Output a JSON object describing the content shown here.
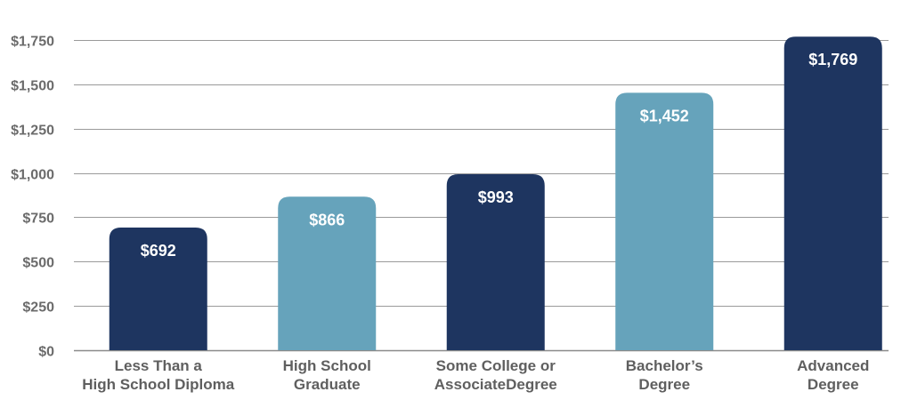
{
  "chart_data": {
    "type": "bar",
    "title": "",
    "xlabel": "",
    "ylabel": "",
    "ylim": [
      0,
      1750
    ],
    "y_ticks": [
      0,
      250,
      500,
      750,
      1000,
      1250,
      1500,
      1750
    ],
    "y_tick_labels": [
      "$0",
      "$250",
      "$500",
      "$750",
      "$1,000",
      "$1,250",
      "$1,500",
      "$1,750"
    ],
    "grid": true,
    "categories": [
      [
        "Less Than a",
        "High School Diploma"
      ],
      [
        "High School",
        "Graduate"
      ],
      [
        "Some College or",
        "AssociateDegree"
      ],
      [
        "Bachelor’s",
        "Degree"
      ],
      [
        "Advanced",
        "Degree"
      ]
    ],
    "values": [
      692,
      866,
      993,
      1452,
      1769
    ],
    "value_labels": [
      "$692",
      "$866",
      "$993",
      "$1,452",
      "$1,769"
    ],
    "bar_colors": [
      "#1e3560",
      "#66a3bb",
      "#1e3560",
      "#66a3bb",
      "#1e3560"
    ],
    "gridline_color": "#9a9a9a"
  }
}
